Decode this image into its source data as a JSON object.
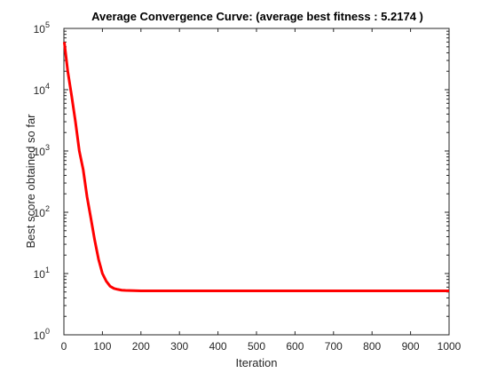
{
  "chart_data": {
    "type": "line",
    "title": "Average Convergence Curve: (average best fitness : 5.2174 )",
    "xlabel": "Iteration",
    "ylabel": "Best score obtained so far",
    "xlim": [
      0,
      1000
    ],
    "ylim": [
      1,
      100000
    ],
    "yscale": "log",
    "grid": false,
    "x_ticks": [
      0,
      100,
      200,
      300,
      400,
      500,
      600,
      700,
      800,
      900,
      1000
    ],
    "y_ticks": [
      {
        "value": 1,
        "base": "10",
        "exp": "0"
      },
      {
        "value": 10,
        "base": "10",
        "exp": "1"
      },
      {
        "value": 100,
        "base": "10",
        "exp": "2"
      },
      {
        "value": 1000,
        "base": "10",
        "exp": "3"
      },
      {
        "value": 10000,
        "base": "10",
        "exp": "4"
      },
      {
        "value": 100000,
        "base": "10",
        "exp": "5"
      }
    ],
    "series": [
      {
        "color": "#ff0000",
        "x": [
          1,
          10,
          20,
          30,
          40,
          50,
          60,
          70,
          80,
          90,
          100,
          110,
          120,
          130,
          140,
          150,
          160,
          180,
          200,
          300,
          400,
          500,
          600,
          700,
          800,
          900,
          1000
        ],
        "y": [
          60000,
          20000,
          8000,
          3000,
          1000,
          500,
          180,
          80,
          35,
          17,
          10,
          7.5,
          6.2,
          5.7,
          5.5,
          5.35,
          5.3,
          5.25,
          5.22,
          5.22,
          5.22,
          5.22,
          5.22,
          5.22,
          5.22,
          5.22,
          5.2174
        ]
      }
    ]
  }
}
